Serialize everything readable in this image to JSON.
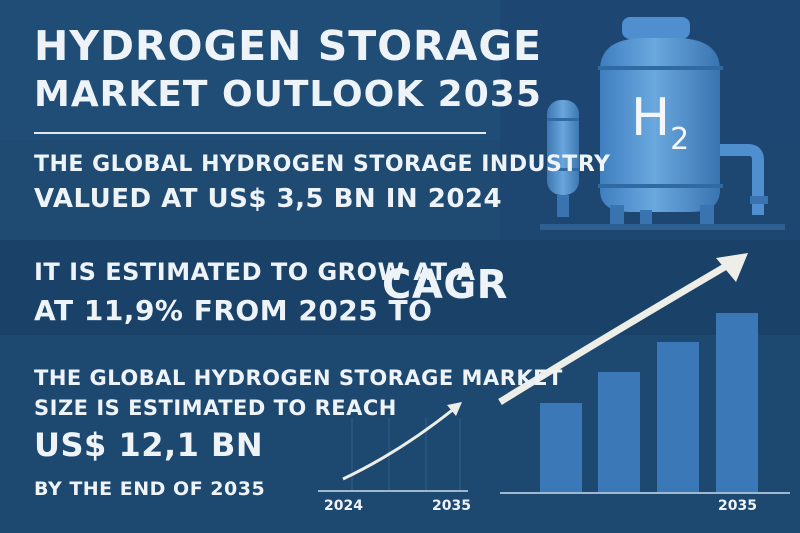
{
  "title_line1": "HYDROGEN STORAGE",
  "title_line2": "MARKET OUTLOOK 2035",
  "line1": "THE GLOBAL HYDROGEN STORAGE INDUSTRY",
  "line2": "VALUED AT US$ 3,5 BN IN 2024",
  "line3": "IT IS ESTIMATED TO GROW AT A",
  "line4": "AT 11,9% FROM 2025 TO",
  "cagr": "CAGR",
  "line5": "THE GLOBAL HYDROGEN STORAGE MARKET",
  "line6": "SIZE IS ESTIMATED TO REACH",
  "line7": "US$ 12,1 BN",
  "line8": "BY THE END OF 2035",
  "small_chart": {
    "x_start": "2024",
    "x_end": "2035"
  },
  "bar_chart": {
    "x_end": "2035",
    "bar_levels": [
      0.35,
      0.5,
      0.62,
      0.72
    ]
  },
  "tank_label": "H",
  "tank_label_sub": "2",
  "colors": {
    "background": "#1f4a72",
    "text": "#eef3f8",
    "bars": "#3b78b8",
    "tank": "#5b9bd5",
    "arrow": "#eeeee8"
  }
}
